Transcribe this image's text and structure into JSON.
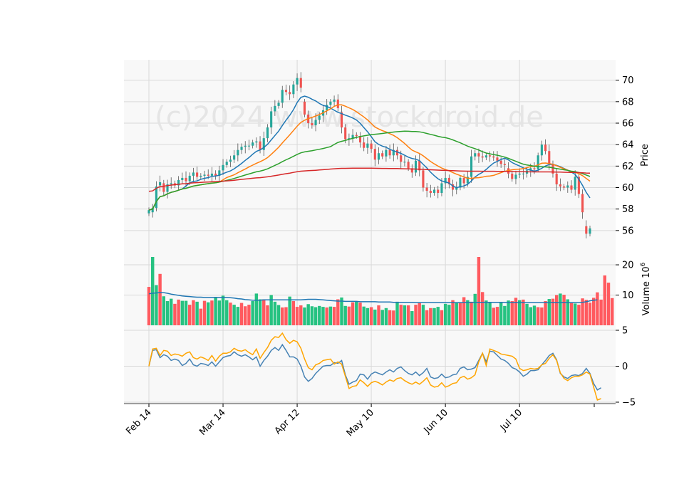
{
  "chart_data": {
    "type": "candlestick",
    "watermark": "(c)2024 www.stockdroid.de",
    "x_tick_labels": [
      "Feb 14",
      "Mar 14",
      "Apr 12",
      "May 10",
      "Jun 10",
      "Jul 10"
    ],
    "x_tick_index": [
      0,
      20,
      40,
      60,
      80,
      100
    ],
    "price_panel": {
      "ylabel": "Price",
      "ylim": [
        54.2,
        71.9
      ],
      "yticks": [
        56,
        58,
        60,
        62,
        64,
        66,
        68,
        70
      ],
      "up_color": "#26a69a",
      "down_color": "#ef5350",
      "close": [
        57.9,
        58.1,
        60.1,
        60.5,
        59.6,
        60.3,
        60.4,
        60.2,
        60.7,
        60.9,
        60.6,
        61.1,
        61.4,
        61.0,
        61.1,
        61.2,
        61.1,
        61.3,
        61.1,
        61.6,
        62.1,
        62.4,
        62.6,
        63.0,
        63.5,
        63.8,
        63.9,
        63.9,
        64.2,
        64.3,
        63.5,
        64.6,
        65.6,
        67.1,
        67.6,
        67.9,
        69.1,
        68.9,
        68.7,
        69.6,
        70.2,
        69.3,
        66.8,
        66.0,
        65.8,
        66.3,
        66.7,
        67.2,
        67.7,
        68.0,
        68.2,
        67.4,
        65.6,
        64.5,
        64.6,
        64.9,
        64.8,
        64.2,
        63.7,
        64.1,
        63.6,
        62.6,
        63.2,
        62.9,
        63.5,
        63.0,
        63.5,
        63.0,
        62.4,
        62.4,
        61.8,
        61.4,
        62.5,
        61.6,
        60.0,
        59.7,
        59.5,
        59.8,
        59.5,
        60.4,
        60.9,
        60.3,
        59.8,
        60.0,
        60.9,
        60.4,
        61.0,
        62.9,
        63.2,
        62.9,
        62.8,
        63.0,
        62.9,
        62.8,
        62.5,
        62.2,
        62.1,
        61.3,
        60.8,
        61.2,
        61.3,
        61.3,
        61.6,
        61.8,
        61.7,
        63.0,
        64.0,
        63.4,
        62.2,
        61.3,
        60.3,
        60.1,
        60.0,
        60.2,
        59.8,
        61.0,
        59.4,
        57.7,
        55.7,
        56.2
      ],
      "ohlc_note": "open/high/low per candle drawn from the figure",
      "open": [
        57.6,
        57.7,
        58.1,
        60.2,
        60.4,
        59.6,
        60.3,
        60.4,
        60.2,
        60.7,
        60.9,
        60.6,
        61.1,
        61.4,
        61.0,
        61.1,
        61.2,
        61.1,
        61.3,
        61.1,
        61.6,
        62.1,
        62.4,
        62.6,
        63.0,
        63.5,
        63.8,
        63.9,
        63.9,
        64.2,
        64.3,
        63.5,
        64.6,
        65.6,
        67.1,
        67.6,
        67.9,
        69.1,
        68.9,
        68.7,
        69.6,
        70.2,
        68.0,
        66.8,
        66.0,
        65.8,
        66.3,
        66.7,
        67.2,
        67.7,
        68.0,
        68.2,
        67.0,
        65.6,
        64.5,
        64.6,
        64.9,
        64.8,
        64.2,
        63.7,
        64.1,
        63.6,
        62.6,
        63.2,
        62.9,
        63.5,
        63.0,
        63.5,
        63.0,
        62.4,
        62.4,
        61.8,
        61.4,
        62.5,
        61.6,
        60.0,
        59.7,
        59.5,
        59.8,
        59.5,
        60.4,
        60.9,
        60.3,
        59.8,
        60.0,
        60.9,
        60.4,
        61.0,
        62.9,
        63.2,
        62.9,
        62.8,
        63.0,
        62.9,
        62.8,
        62.5,
        62.2,
        61.8,
        61.3,
        60.8,
        61.2,
        61.3,
        61.3,
        61.6,
        61.8,
        61.7,
        63.0,
        64.0,
        63.4,
        62.2,
        61.3,
        60.3,
        60.1,
        60.0,
        60.2,
        59.8,
        61.0,
        59.4,
        56.4,
        55.7
      ],
      "moving_averages": [
        {
          "color": "#1f77b4",
          "period": 10
        },
        {
          "color": "#ff7f0e",
          "period": 20
        },
        {
          "color": "#2ca02c",
          "period": 50
        },
        {
          "color": "#d62728",
          "period": 200
        }
      ]
    },
    "volume_panel": {
      "ylabel": "Volume  10^6",
      "ylabel_text": "Volume",
      "ylabel_exp": "6",
      "ylim": [
        0,
        22.6
      ],
      "yticks": [
        10,
        20
      ],
      "up_color": "#26c281",
      "down_color": "#ff5a5f",
      "values": [
        12.7,
        22.6,
        13.3,
        17.0,
        9.6,
        8.0,
        8.8,
        7.1,
        8.5,
        8.1,
        8.1,
        6.8,
        8.3,
        7.8,
        5.5,
        8.1,
        7.6,
        8.2,
        9.4,
        8.2,
        9.8,
        8.3,
        7.5,
        6.8,
        6.1,
        7.4,
        6.3,
        6.8,
        8.0,
        10.5,
        8.6,
        8.6,
        6.6,
        10.0,
        7.8,
        6.7,
        5.9,
        6.0,
        9.5,
        8.0,
        6.1,
        6.6,
        5.9,
        7.0,
        6.3,
        6.0,
        6.4,
        6.1,
        5.9,
        6.2,
        6.1,
        8.6,
        9.2,
        6.4,
        6.2,
        7.6,
        8.0,
        7.5,
        6.2,
        5.7,
        6.0,
        5.2,
        6.6,
        5.1,
        5.7,
        5.0,
        4.9,
        7.8,
        6.8,
        6.6,
        6.6,
        4.7,
        6.8,
        7.6,
        6.8,
        5.0,
        5.7,
        5.7,
        6.1,
        5.0,
        7.1,
        6.8,
        8.3,
        7.6,
        7.5,
        9.3,
        8.3,
        7.8,
        10.4,
        22.6,
        11.0,
        8.2,
        7.6,
        5.8,
        6.1,
        7.7,
        6.4,
        8.2,
        8.0,
        9.1,
        8.3,
        8.5,
        7.1,
        6.0,
        6.5,
        6.0,
        5.9,
        8.0,
        8.7,
        8.8,
        10.0,
        10.5,
        10.1,
        8.6,
        7.4,
        7.2,
        6.8,
        8.9,
        8.4,
        7.5,
        9.1,
        10.9,
        8.5,
        16.5,
        14.1,
        9.0
      ],
      "direction": [
        0,
        1,
        1,
        0,
        1,
        1,
        1,
        0,
        0,
        1,
        1,
        0,
        0,
        1,
        0,
        0,
        1,
        0,
        1,
        1,
        1,
        1,
        0,
        1,
        1,
        0,
        0,
        0,
        1,
        1,
        1,
        0,
        0,
        1,
        1,
        1,
        0,
        0,
        1,
        0,
        0,
        0,
        1,
        1,
        1,
        1,
        1,
        1,
        0,
        1,
        0,
        0,
        1,
        1,
        0,
        0,
        1,
        0,
        1,
        1,
        0,
        1,
        0,
        1,
        1,
        0,
        0,
        1,
        0,
        1,
        0,
        1,
        0,
        0,
        1,
        0,
        0,
        1,
        1,
        0,
        1,
        1,
        0,
        1,
        0,
        0,
        1,
        0,
        1,
        0,
        0,
        1,
        1,
        0,
        0,
        1,
        1,
        1,
        0,
        0,
        1,
        0,
        1,
        1,
        1,
        0,
        0,
        0,
        1,
        0,
        0,
        1,
        0,
        1,
        0,
        1,
        0,
        0,
        0,
        0
      ],
      "avg_line_color": "#1f77b4",
      "avg_line": [
        10.4,
        10.6,
        10.7,
        10.8,
        10.8,
        10.6,
        10.3,
        10.1,
        9.9,
        9.7,
        9.6,
        9.5,
        9.4,
        9.3,
        9.3,
        9.2,
        9.2,
        9.2,
        9.2,
        9.2,
        9.2,
        9.2,
        9.1,
        9.0,
        8.8,
        8.7,
        8.5,
        8.4,
        8.3,
        8.3,
        8.3,
        8.4,
        8.4,
        8.4,
        8.4,
        8.4,
        8.4,
        8.4,
        8.4,
        8.4,
        8.4,
        8.4,
        8.5,
        8.6,
        8.6,
        8.6,
        8.5,
        8.4,
        8.3,
        8.2,
        8.1,
        8.0,
        8.0,
        7.9,
        7.9,
        7.9,
        7.9,
        7.8,
        7.8,
        7.8,
        7.8,
        7.8,
        7.7,
        7.7,
        7.7,
        7.7,
        7.6,
        7.6,
        7.6,
        7.6,
        7.6,
        7.6,
        7.5,
        7.5,
        7.5,
        7.5,
        7.5,
        7.5,
        7.5,
        7.5,
        7.5,
        7.5,
        7.5,
        7.5,
        7.5,
        7.5,
        7.6,
        7.6,
        7.6,
        7.6,
        7.6,
        7.6,
        7.6,
        7.6,
        7.6,
        7.6,
        7.6,
        7.5,
        7.5,
        7.5,
        7.5,
        7.5,
        7.5,
        7.5,
        7.5,
        7.5,
        7.5,
        7.5,
        7.5,
        7.5,
        7.5,
        7.5,
        7.5,
        7.5,
        7.5,
        7.5,
        7.5,
        7.6,
        7.8,
        8.1,
        8.3,
        8.4
      ]
    },
    "indicator_panel": {
      "ylim": [
        -5,
        5
      ],
      "yticks": [
        -5,
        0,
        5
      ],
      "series": [
        {
          "color": "#4682b4",
          "values": [
            0.0,
            2.2,
            2.3,
            1.2,
            1.6,
            1.4,
            0.8,
            1.0,
            0.8,
            0.1,
            0.4,
            1.0,
            0.2,
            0.0,
            0.4,
            0.3,
            0.1,
            0.6,
            0.0,
            0.6,
            1.2,
            1.4,
            1.5,
            2.0,
            1.6,
            1.4,
            1.6,
            1.3,
            0.9,
            1.3,
            0.0,
            0.8,
            1.4,
            2.2,
            2.6,
            2.2,
            3.0,
            2.2,
            1.3,
            1.3,
            1.0,
            0.0,
            -1.5,
            -2.1,
            -1.7,
            -1.0,
            -0.5,
            0.0,
            0.1,
            0.1,
            0.5,
            0.4,
            0.8,
            -1.2,
            -2.5,
            -2.2,
            -2.0,
            -1.1,
            -1.2,
            -1.8,
            -1.1,
            -0.8,
            -1.0,
            -1.2,
            -0.8,
            -0.5,
            -0.8,
            -0.3,
            -0.1,
            -0.6,
            -1.0,
            -1.2,
            -0.8,
            -1.3,
            -0.9,
            -0.3,
            -1.5,
            -1.7,
            -1.6,
            -1.1,
            -1.6,
            -1.5,
            -1.2,
            -1.1,
            -0.3,
            -0.1,
            -0.5,
            -0.4,
            -0.2,
            0.8,
            1.8,
            0.6,
            2.1,
            2.0,
            1.5,
            1.0,
            0.8,
            0.4,
            -0.2,
            -0.4,
            -0.8,
            -1.4,
            -1.1,
            -0.6,
            -0.6,
            -0.5,
            0.2,
            0.8,
            1.5,
            1.8,
            0.9,
            -1.0,
            -1.5,
            -1.7,
            -1.3,
            -1.2,
            -1.3,
            -1.0,
            -0.3,
            -1.0,
            -2.4,
            -3.3,
            -3.0
          ]
        },
        {
          "color": "#ffa500",
          "values": [
            0.0,
            2.4,
            2.5,
            1.5,
            2.2,
            2.1,
            1.5,
            1.7,
            1.6,
            1.4,
            1.8,
            2.0,
            1.2,
            1.0,
            1.3,
            1.1,
            0.8,
            1.5,
            0.7,
            1.4,
            1.8,
            1.8,
            2.0,
            2.5,
            2.2,
            2.1,
            2.3,
            1.9,
            1.6,
            2.4,
            1.1,
            1.9,
            2.6,
            3.6,
            4.1,
            4.0,
            4.6,
            3.7,
            3.2,
            3.6,
            3.4,
            2.5,
            1.0,
            -0.2,
            -0.5,
            0.2,
            0.4,
            0.8,
            0.9,
            1.0,
            0.3,
            0.6,
            0.3,
            -1.4,
            -3.1,
            -2.8,
            -2.7,
            -1.9,
            -2.3,
            -2.8,
            -2.3,
            -2.1,
            -2.3,
            -2.6,
            -2.2,
            -1.9,
            -2.1,
            -1.7,
            -1.6,
            -2.0,
            -2.3,
            -2.5,
            -2.2,
            -2.5,
            -2.1,
            -1.6,
            -2.6,
            -2.9,
            -2.8,
            -2.3,
            -2.9,
            -2.7,
            -2.4,
            -2.3,
            -1.6,
            -1.4,
            -1.8,
            -1.6,
            -1.2,
            0.6,
            1.8,
            0.1,
            2.4,
            2.2,
            2.0,
            1.7,
            1.6,
            1.5,
            1.4,
            1.0,
            -0.3,
            -0.6,
            -0.5,
            -0.3,
            -0.4,
            -0.3,
            0.2,
            0.4,
            1.1,
            1.6,
            0.8,
            -0.9,
            -1.7,
            -2.0,
            -1.6,
            -1.4,
            -1.4,
            -1.2,
            -0.8,
            -1.1,
            -2.9,
            -4.7,
            -4.5
          ]
        }
      ]
    }
  }
}
